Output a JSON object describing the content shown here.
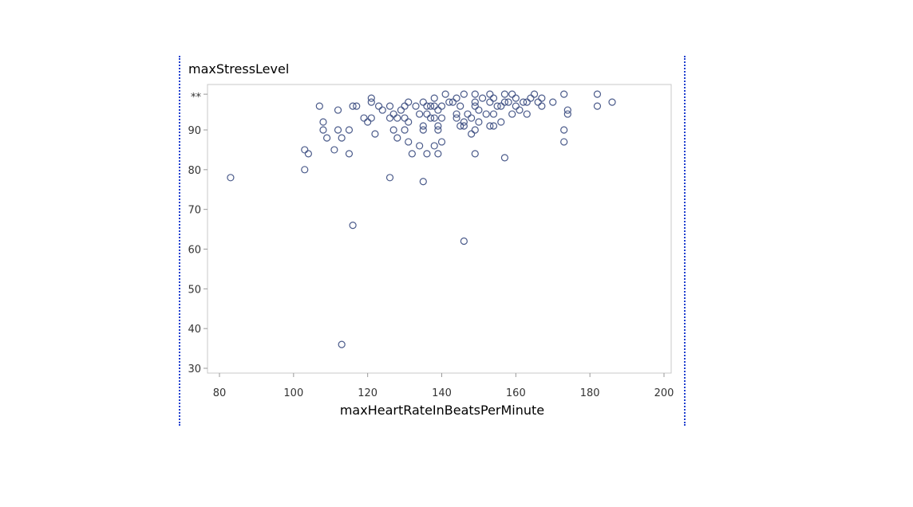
{
  "chart_data": {
    "type": "scatter",
    "title": "",
    "xlabel": "maxHeartRateInBeatsPerMinute",
    "ylabel": "maxStressLevel",
    "xlim": [
      80,
      200
    ],
    "ylim": [
      29,
      99
    ],
    "x_ticks": [
      80,
      100,
      120,
      140,
      160,
      180,
      200
    ],
    "y_ticks": [
      30,
      40,
      50,
      60,
      70,
      80,
      90
    ],
    "y_top_tick_label": "**",
    "grid": false,
    "legend": "none",
    "marker": "open-circle",
    "marker_color": "#4a5a8a",
    "frame_color": "#c8c8c8",
    "divider_color": "#1f3fcf",
    "series": [
      {
        "points": [
          [
            83,
            78
          ],
          [
            103,
            85
          ],
          [
            103,
            80
          ],
          [
            104,
            84
          ],
          [
            107,
            96
          ],
          [
            108,
            92
          ],
          [
            108,
            90
          ],
          [
            109,
            88
          ],
          [
            111,
            85
          ],
          [
            112,
            95
          ],
          [
            112,
            90
          ],
          [
            113,
            88
          ],
          [
            113,
            36
          ],
          [
            115,
            90
          ],
          [
            115,
            84
          ],
          [
            116,
            66
          ],
          [
            116,
            96
          ],
          [
            117,
            96
          ],
          [
            119,
            93
          ],
          [
            120,
            92
          ],
          [
            121,
            98
          ],
          [
            121,
            97
          ],
          [
            121,
            93
          ],
          [
            122,
            89
          ],
          [
            123,
            96
          ],
          [
            124,
            95
          ],
          [
            126,
            96
          ],
          [
            126,
            93
          ],
          [
            126,
            78
          ],
          [
            127,
            94
          ],
          [
            127,
            90
          ],
          [
            128,
            93
          ],
          [
            128,
            88
          ],
          [
            129,
            95
          ],
          [
            130,
            96
          ],
          [
            130,
            93
          ],
          [
            130,
            90
          ],
          [
            131,
            97
          ],
          [
            131,
            92
          ],
          [
            131,
            87
          ],
          [
            132,
            84
          ],
          [
            133,
            96
          ],
          [
            134,
            94
          ],
          [
            134,
            86
          ],
          [
            135,
            97
          ],
          [
            135,
            91
          ],
          [
            135,
            90
          ],
          [
            135,
            77
          ],
          [
            136,
            96
          ],
          [
            136,
            94
          ],
          [
            136,
            84
          ],
          [
            137,
            96
          ],
          [
            137,
            93
          ],
          [
            138,
            98
          ],
          [
            138,
            96
          ],
          [
            138,
            93
          ],
          [
            138,
            86
          ],
          [
            139,
            95
          ],
          [
            139,
            91
          ],
          [
            139,
            90
          ],
          [
            139,
            84
          ],
          [
            140,
            96
          ],
          [
            140,
            93
          ],
          [
            140,
            87
          ],
          [
            141,
            99
          ],
          [
            142,
            97
          ],
          [
            143,
            97
          ],
          [
            144,
            98
          ],
          [
            144,
            94
          ],
          [
            144,
            93
          ],
          [
            145,
            96
          ],
          [
            145,
            91
          ],
          [
            146,
            99
          ],
          [
            146,
            92
          ],
          [
            146,
            91
          ],
          [
            146,
            62
          ],
          [
            147,
            94
          ],
          [
            148,
            93
          ],
          [
            148,
            89
          ],
          [
            149,
            99
          ],
          [
            149,
            97
          ],
          [
            149,
            96
          ],
          [
            149,
            90
          ],
          [
            149,
            84
          ],
          [
            150,
            95
          ],
          [
            150,
            92
          ],
          [
            151,
            98
          ],
          [
            152,
            94
          ],
          [
            153,
            99
          ],
          [
            153,
            97
          ],
          [
            153,
            91
          ],
          [
            154,
            98
          ],
          [
            154,
            94
          ],
          [
            154,
            91
          ],
          [
            155,
            96
          ],
          [
            156,
            96
          ],
          [
            156,
            92
          ],
          [
            157,
            99
          ],
          [
            157,
            97
          ],
          [
            157,
            83
          ],
          [
            158,
            97
          ],
          [
            159,
            99
          ],
          [
            159,
            94
          ],
          [
            160,
            98
          ],
          [
            160,
            96
          ],
          [
            161,
            95
          ],
          [
            162,
            97
          ],
          [
            163,
            97
          ],
          [
            163,
            94
          ],
          [
            164,
            98
          ],
          [
            165,
            99
          ],
          [
            166,
            97
          ],
          [
            167,
            98
          ],
          [
            167,
            96
          ],
          [
            170,
            97
          ],
          [
            173,
            99
          ],
          [
            173,
            90
          ],
          [
            173,
            87
          ],
          [
            174,
            95
          ],
          [
            174,
            94
          ],
          [
            182,
            99
          ],
          [
            182,
            96
          ],
          [
            186,
            97
          ]
        ]
      }
    ]
  }
}
